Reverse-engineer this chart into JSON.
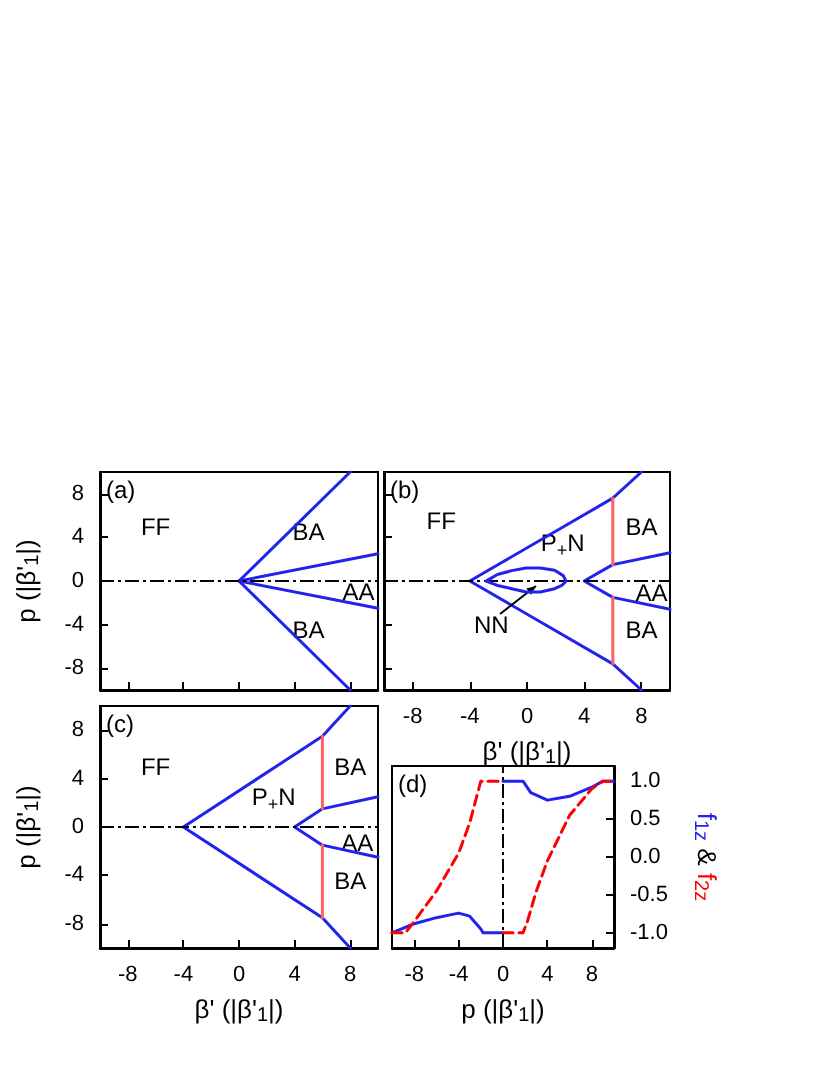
{
  "chart_data": [
    {
      "type": "line",
      "annotations": [
        "(a)",
        "FF",
        "BA",
        "AA",
        "BA"
      ],
      "ylabel": "p (|β'$_{1}$|)",
      "xlim": [
        -10,
        10
      ],
      "ylim": [
        -10,
        10
      ],
      "xticks": [
        -8,
        -4,
        0,
        4,
        8
      ],
      "yticks": [
        -8,
        -4,
        0,
        4,
        8
      ],
      "tick_labels": "y",
      "marker": "none",
      "ref_lines": [
        {
          "axis": "y",
          "value": 0,
          "color": "#000000",
          "line_style": "dashdot"
        }
      ],
      "series": [
        {
          "color": "#2222ee",
          "x": [
            8,
            0,
            8
          ],
          "values": [
            10,
            0,
            -10
          ]
        },
        {
          "color": "#2222ee",
          "x": [
            10,
            0,
            10
          ],
          "values": [
            2.5,
            0,
            -2.5
          ]
        }
      ]
    },
    {
      "type": "line",
      "annotations": [
        "(b)",
        "FF",
        "P$_{+}$N",
        "BA",
        "AA",
        "BA",
        "NN"
      ],
      "xlabel": "β' (|β'$_{1}$|)",
      "xlim": [
        -10,
        10
      ],
      "ylim": [
        -10,
        10
      ],
      "xticks": [
        -8,
        -4,
        0,
        4,
        8
      ],
      "yticks": [
        -8,
        -4,
        0,
        4,
        8
      ],
      "tick_labels": "x",
      "marker": "none",
      "ref_lines": [
        {
          "axis": "y",
          "value": 0,
          "color": "#000000",
          "line_style": "dashdot"
        }
      ],
      "series": [
        {
          "color": "#2222ee",
          "x": [
            8,
            6,
            -4,
            6,
            8
          ],
          "values": [
            10,
            7.6,
            0,
            -7.6,
            -10
          ]
        },
        {
          "color": "#2222ee",
          "x": [
            10,
            6,
            4,
            6,
            10
          ],
          "values": [
            2.6,
            1.5,
            0,
            -1.5,
            -2.6
          ]
        },
        {
          "color": "#ff6060",
          "x": [
            6,
            6
          ],
          "values": [
            7.6,
            1.5
          ]
        },
        {
          "color": "#ff6060",
          "x": [
            6,
            6
          ],
          "values": [
            -1.5,
            -7.6
          ]
        }
      ]
    },
    {
      "type": "line",
      "annotations": [
        "(c)",
        "FF",
        "P$_{+}$N",
        "BA",
        "AA",
        "BA"
      ],
      "xlabel": "β' (|β'$_{1}$|)",
      "ylabel": "p (|β'$_{1}$|)",
      "xlim": [
        -10,
        10
      ],
      "ylim": [
        -10,
        10
      ],
      "xticks": [
        -8,
        -4,
        0,
        4,
        8
      ],
      "yticks": [
        -8,
        -4,
        0,
        4,
        8
      ],
      "marker": "none",
      "ref_lines": [
        {
          "axis": "y",
          "value": 0,
          "color": "#000000",
          "line_style": "dashdot"
        }
      ],
      "series": [
        {
          "color": "#2222ee",
          "x": [
            8,
            6,
            -4,
            6,
            8
          ],
          "values": [
            10,
            7.5,
            0,
            -7.5,
            -10
          ]
        },
        {
          "color": "#2222ee",
          "x": [
            10,
            6,
            4,
            6,
            10
          ],
          "values": [
            2.5,
            1.5,
            0,
            -1.5,
            -2.5
          ]
        },
        {
          "color": "#ff6060",
          "x": [
            6,
            6
          ],
          "values": [
            7.5,
            1.5
          ]
        },
        {
          "color": "#ff6060",
          "x": [
            6,
            6
          ],
          "values": [
            -1.5,
            -7.5
          ]
        }
      ]
    },
    {
      "type": "line",
      "annotations": [
        "(d)"
      ],
      "xlabel": "p (|β'$_{1}$|)",
      "y2label": "f$_{1z}$ & f$_{2z}$",
      "xlim": [
        -10,
        10
      ],
      "y2lim": [
        -1.2,
        1.2
      ],
      "xticks": [
        -8,
        -4,
        0,
        4,
        8
      ],
      "y2ticks": [
        {
          "value": -1,
          "label": "-1.0"
        },
        {
          "value": -0.5,
          "label": "-0.5"
        },
        {
          "value": 0,
          "label": "0.0"
        },
        {
          "value": 0.5,
          "label": "0.5"
        },
        {
          "value": 1,
          "label": "1.0"
        }
      ],
      "marker": "none",
      "ref_lines": [
        {
          "axis": "x",
          "value": 0,
          "color": "#000000",
          "line_style": "dashdot"
        }
      ],
      "series": [
        {
          "color": "#2222ee",
          "axis": "y2",
          "x": [
            -10,
            -8,
            -6,
            -4,
            -3,
            -2,
            -1.8,
            0
          ],
          "values": [
            -1,
            -0.88,
            -0.8,
            -0.74,
            -0.78,
            -0.95,
            -1,
            -1
          ]
        },
        {
          "color": "#2222ee",
          "axis": "y2",
          "x": [
            0,
            1.8,
            2.5,
            4,
            6,
            8,
            9,
            10
          ],
          "values": [
            1,
            1,
            0.85,
            0.75,
            0.8,
            0.92,
            1,
            1
          ]
        },
        {
          "color": "#ff0000",
          "axis": "y2",
          "line_style": "dashed",
          "x": [
            -10,
            -8.8,
            -8,
            -6,
            -4,
            -3,
            -2,
            0
          ],
          "values": [
            -1,
            -1,
            -0.85,
            -0.45,
            0.05,
            0.45,
            1,
            1
          ]
        },
        {
          "color": "#ff0000",
          "axis": "y2",
          "line_style": "dashed",
          "x": [
            0,
            1.8,
            2.2,
            3,
            4,
            6,
            8,
            9,
            10
          ],
          "values": [
            -1,
            -1,
            -0.85,
            -0.45,
            -0.05,
            0.55,
            0.9,
            1,
            1
          ]
        }
      ]
    }
  ]
}
